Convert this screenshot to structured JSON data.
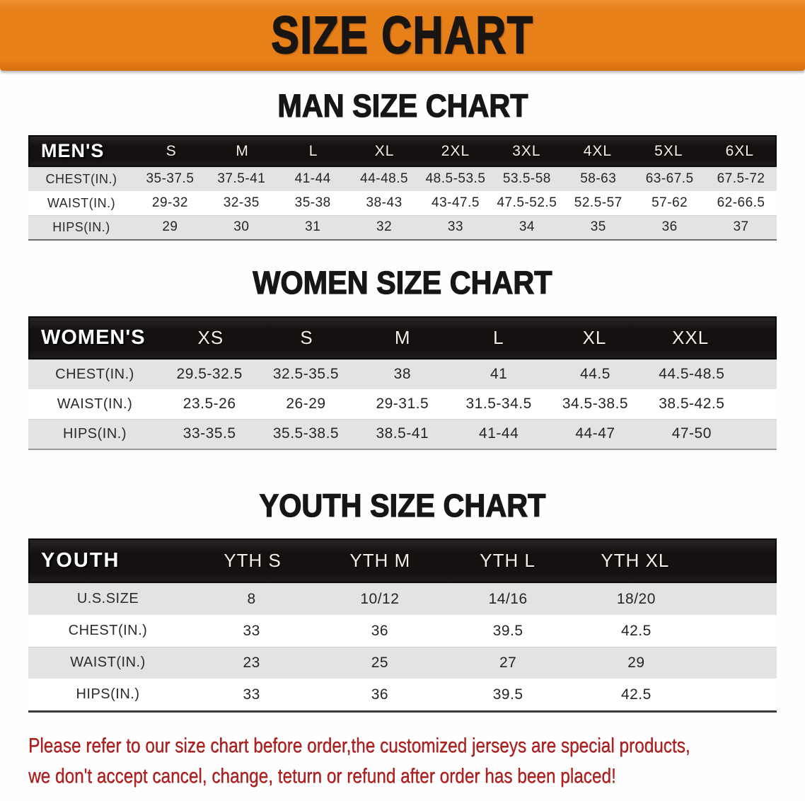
{
  "banner": {
    "title": "SIZE CHART",
    "bg_color": "#e8801a",
    "text_color": "#181512"
  },
  "sections": [
    {
      "heading": "MAN SIZE CHART",
      "header_label": "MEN'S",
      "columns": [
        "S",
        "M",
        "L",
        "XL",
        "2XL",
        "3XL",
        "4XL",
        "5XL",
        "6XL"
      ],
      "rows": [
        {
          "label": "CHEST(IN.)",
          "values": [
            "35-37.5",
            "37.5-41",
            "41-44",
            "44-48.5",
            "48.5-53.5",
            "53.5-58",
            "58-63",
            "63-67.5",
            "67.5-72"
          ]
        },
        {
          "label": "WAIST(IN.)",
          "values": [
            "29-32",
            "32-35",
            "35-38",
            "38-43",
            "43-47.5",
            "47.5-52.5",
            "52.5-57",
            "57-62",
            "62-66.5"
          ]
        },
        {
          "label": "HIPS(IN.)",
          "values": [
            "29",
            "30",
            "31",
            "32",
            "33",
            "34",
            "35",
            "36",
            "37"
          ]
        }
      ]
    },
    {
      "heading": "WOMEN SIZE CHART",
      "header_label": "WOMEN'S",
      "columns": [
        "XS",
        "S",
        "M",
        "L",
        "XL",
        "XXL"
      ],
      "rows": [
        {
          "label": "CHEST(IN.)",
          "values": [
            "29.5-32.5",
            "32.5-35.5",
            "38",
            "41",
            "44.5",
            "44.5-48.5"
          ]
        },
        {
          "label": "WAIST(IN.)",
          "values": [
            "23.5-26",
            "26-29",
            "29-31.5",
            "31.5-34.5",
            "34.5-38.5",
            "38.5-42.5"
          ]
        },
        {
          "label": "HIPS(IN.)",
          "values": [
            "33-35.5",
            "35.5-38.5",
            "38.5-41",
            "41-44",
            "44-47",
            "47-50"
          ]
        }
      ]
    },
    {
      "heading": "YOUTH SIZE CHART",
      "header_label": "YOUTH",
      "columns": [
        "YTH S",
        "YTH M",
        "YTH L",
        "YTH XL"
      ],
      "rows": [
        {
          "label": "U.S.SIZE",
          "values": [
            "8",
            "10/12",
            "14/16",
            "18/20"
          ]
        },
        {
          "label": "CHEST(IN.)",
          "values": [
            "33",
            "36",
            "39.5",
            "42.5"
          ]
        },
        {
          "label": "WAIST(IN.)",
          "values": [
            "23",
            "25",
            "27",
            "29"
          ]
        },
        {
          "label": "HIPS(IN.)",
          "values": [
            "33",
            "36",
            "39.5",
            "42.5"
          ]
        }
      ]
    }
  ],
  "disclaimer": {
    "line1": "Please refer to our size chart before order,the customized jerseys are special products,",
    "line2": "we don't accept cancel, change, teturn or refund after order has been placed!",
    "color": "#b02222"
  }
}
